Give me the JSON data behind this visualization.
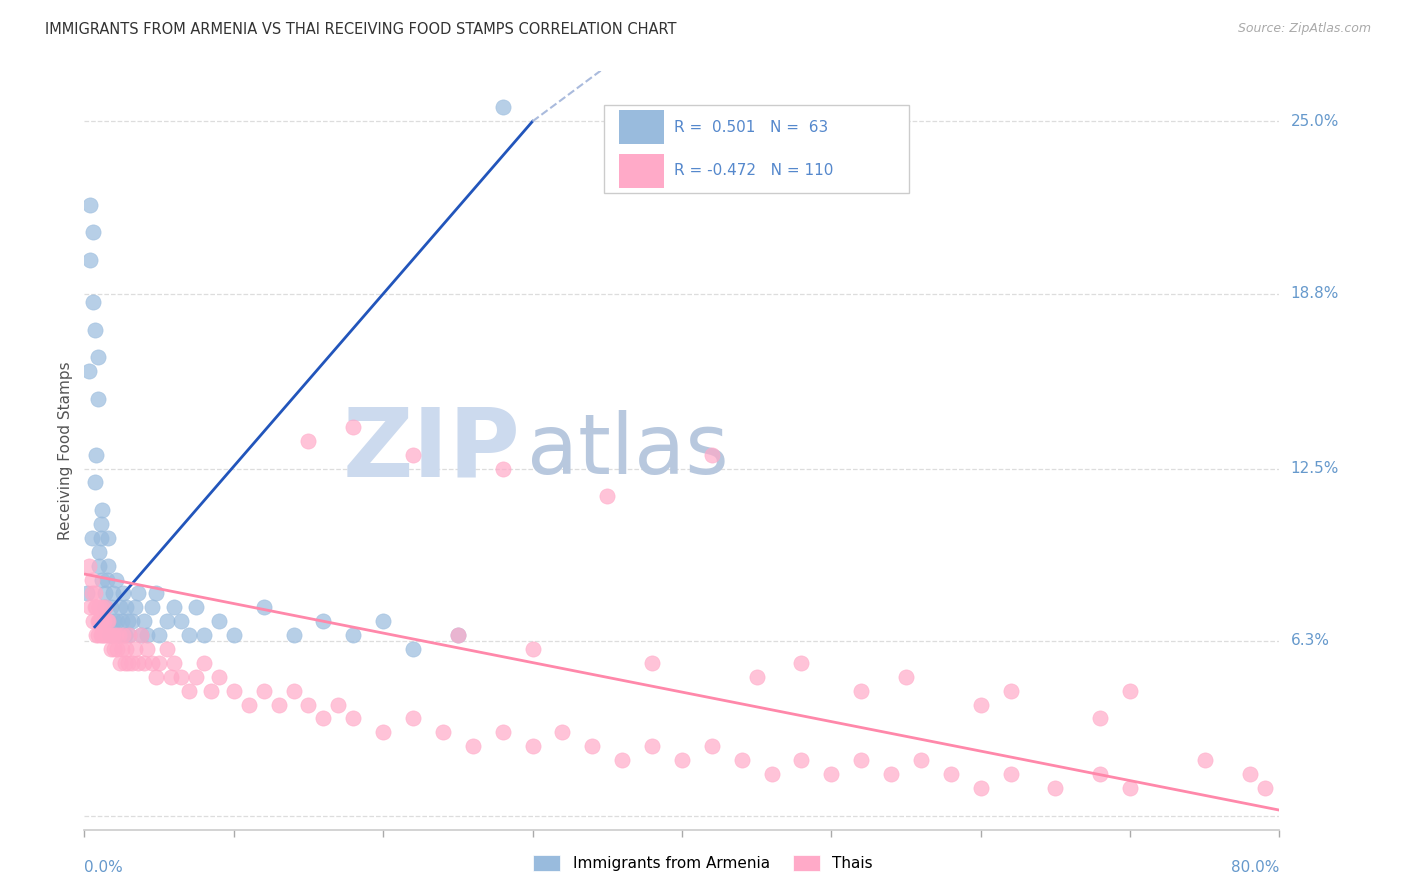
{
  "title": "IMMIGRANTS FROM ARMENIA VS THAI RECEIVING FOOD STAMPS CORRELATION CHART",
  "source": "Source: ZipAtlas.com",
  "ylabel": "Receiving Food Stamps",
  "ytick_values": [
    0.0,
    0.063,
    0.125,
    0.188,
    0.25
  ],
  "ytick_labels": [
    "",
    "6.3%",
    "12.5%",
    "18.8%",
    "25.0%"
  ],
  "xmin": 0.0,
  "xmax": 0.8,
  "ymin": -0.005,
  "ymax": 0.268,
  "armenia_R": "0.501",
  "armenia_N": "63",
  "thai_R": "-0.472",
  "thai_N": "110",
  "armenia_dot_color": "#99bbdd",
  "thai_dot_color": "#ffaac8",
  "armenia_line_color": "#2255bb",
  "thai_line_color": "#ff88aa",
  "armenia_line_dashed_color": "#aabbdd",
  "bg_color": "#ffffff",
  "title_color": "#333333",
  "source_color": "#aaaaaa",
  "axis_label_color": "#6699cc",
  "ylabel_color": "#555555",
  "grid_color": "#dddddd",
  "legend_frame_color": "#cccccc",
  "legend_r_color": "#5588cc",
  "legend_n_color": "#5588cc",
  "armenia_x": [
    0.002,
    0.003,
    0.004,
    0.004,
    0.005,
    0.006,
    0.006,
    0.007,
    0.007,
    0.008,
    0.009,
    0.009,
    0.01,
    0.01,
    0.011,
    0.011,
    0.012,
    0.012,
    0.013,
    0.014,
    0.014,
    0.015,
    0.016,
    0.016,
    0.017,
    0.018,
    0.019,
    0.02,
    0.021,
    0.022,
    0.023,
    0.024,
    0.025,
    0.026,
    0.027,
    0.028,
    0.029,
    0.03,
    0.032,
    0.034,
    0.036,
    0.038,
    0.04,
    0.042,
    0.045,
    0.048,
    0.05,
    0.055,
    0.06,
    0.065,
    0.07,
    0.075,
    0.08,
    0.09,
    0.1,
    0.12,
    0.14,
    0.16,
    0.18,
    0.2,
    0.22,
    0.25,
    0.28
  ],
  "armenia_y": [
    0.08,
    0.16,
    0.2,
    0.22,
    0.1,
    0.185,
    0.21,
    0.12,
    0.175,
    0.13,
    0.15,
    0.165,
    0.09,
    0.095,
    0.1,
    0.105,
    0.085,
    0.11,
    0.07,
    0.075,
    0.08,
    0.085,
    0.09,
    0.1,
    0.065,
    0.075,
    0.08,
    0.07,
    0.085,
    0.07,
    0.065,
    0.075,
    0.07,
    0.08,
    0.065,
    0.075,
    0.07,
    0.065,
    0.07,
    0.075,
    0.08,
    0.065,
    0.07,
    0.065,
    0.075,
    0.08,
    0.065,
    0.07,
    0.075,
    0.07,
    0.065,
    0.075,
    0.065,
    0.07,
    0.065,
    0.075,
    0.065,
    0.07,
    0.065,
    0.07,
    0.06,
    0.065,
    0.255
  ],
  "thai_x": [
    0.003,
    0.004,
    0.005,
    0.005,
    0.006,
    0.007,
    0.007,
    0.008,
    0.008,
    0.009,
    0.009,
    0.01,
    0.01,
    0.011,
    0.011,
    0.012,
    0.012,
    0.013,
    0.013,
    0.014,
    0.014,
    0.015,
    0.016,
    0.016,
    0.017,
    0.018,
    0.019,
    0.02,
    0.021,
    0.022,
    0.023,
    0.024,
    0.025,
    0.026,
    0.027,
    0.028,
    0.029,
    0.03,
    0.032,
    0.034,
    0.036,
    0.038,
    0.04,
    0.042,
    0.045,
    0.048,
    0.05,
    0.055,
    0.058,
    0.06,
    0.065,
    0.07,
    0.075,
    0.08,
    0.085,
    0.09,
    0.1,
    0.11,
    0.12,
    0.13,
    0.14,
    0.15,
    0.16,
    0.17,
    0.18,
    0.2,
    0.22,
    0.24,
    0.26,
    0.28,
    0.3,
    0.32,
    0.34,
    0.36,
    0.38,
    0.4,
    0.42,
    0.44,
    0.46,
    0.48,
    0.5,
    0.52,
    0.54,
    0.56,
    0.58,
    0.6,
    0.62,
    0.65,
    0.68,
    0.7,
    0.15,
    0.18,
    0.22,
    0.28,
    0.35,
    0.42,
    0.48,
    0.55,
    0.62,
    0.7,
    0.25,
    0.3,
    0.38,
    0.45,
    0.52,
    0.6,
    0.68,
    0.75,
    0.78,
    0.79
  ],
  "thai_y": [
    0.09,
    0.075,
    0.085,
    0.08,
    0.07,
    0.075,
    0.08,
    0.065,
    0.075,
    0.07,
    0.065,
    0.075,
    0.07,
    0.065,
    0.07,
    0.075,
    0.065,
    0.07,
    0.065,
    0.075,
    0.065,
    0.07,
    0.065,
    0.07,
    0.065,
    0.06,
    0.065,
    0.06,
    0.065,
    0.06,
    0.065,
    0.055,
    0.06,
    0.065,
    0.055,
    0.06,
    0.055,
    0.065,
    0.055,
    0.06,
    0.055,
    0.065,
    0.055,
    0.06,
    0.055,
    0.05,
    0.055,
    0.06,
    0.05,
    0.055,
    0.05,
    0.045,
    0.05,
    0.055,
    0.045,
    0.05,
    0.045,
    0.04,
    0.045,
    0.04,
    0.045,
    0.04,
    0.035,
    0.04,
    0.035,
    0.03,
    0.035,
    0.03,
    0.025,
    0.03,
    0.025,
    0.03,
    0.025,
    0.02,
    0.025,
    0.02,
    0.025,
    0.02,
    0.015,
    0.02,
    0.015,
    0.02,
    0.015,
    0.02,
    0.015,
    0.01,
    0.015,
    0.01,
    0.015,
    0.01,
    0.135,
    0.14,
    0.13,
    0.125,
    0.115,
    0.13,
    0.055,
    0.05,
    0.045,
    0.045,
    0.065,
    0.06,
    0.055,
    0.05,
    0.045,
    0.04,
    0.035,
    0.02,
    0.015,
    0.01
  ]
}
